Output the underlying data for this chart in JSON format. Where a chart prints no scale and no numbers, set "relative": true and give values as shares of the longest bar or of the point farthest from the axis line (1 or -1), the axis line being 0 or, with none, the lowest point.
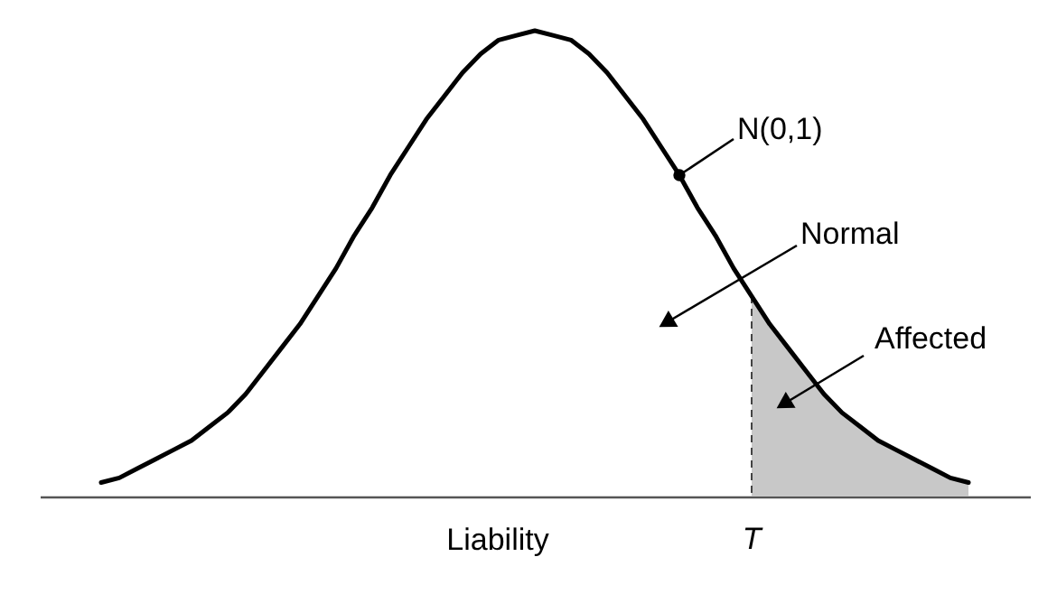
{
  "chart_data": {
    "type": "line",
    "relative": true,
    "xlabel": "Liability",
    "categories": [
      null,
      null,
      null,
      null,
      null,
      null,
      null,
      null,
      null,
      null,
      null,
      null,
      null,
      null,
      null,
      null,
      null,
      null,
      null,
      null,
      null,
      null,
      null,
      null,
      null,
      null,
      null,
      null,
      null,
      null,
      null,
      null,
      null,
      null,
      null,
      null,
      null,
      null,
      null,
      null,
      null,
      null,
      null,
      null,
      null,
      null,
      null,
      null,
      null
    ],
    "series": [
      {
        "color": "#000000",
        "values": [
          0.03,
          0.04,
          0.06,
          0.08,
          0.1,
          0.12,
          0.15,
          0.18,
          0.22,
          0.27,
          0.32,
          0.37,
          0.43,
          0.49,
          0.56,
          0.62,
          0.69,
          0.75,
          0.81,
          0.86,
          0.91,
          0.95,
          0.98,
          0.99,
          1,
          0.99,
          0.98,
          0.95,
          0.91,
          0.86,
          0.81,
          0.75,
          0.69,
          0.62,
          0.56,
          0.49,
          0.43,
          0.37,
          0.32,
          0.27,
          0.22,
          0.18,
          0.15,
          0.12,
          0.1,
          0.08,
          0.06,
          0.04,
          0.03
        ],
        "lower": [
          null,
          null,
          null,
          null,
          null,
          null,
          null,
          null,
          null,
          null,
          null,
          null,
          null,
          null,
          null,
          null,
          null,
          null,
          null,
          null,
          null,
          null,
          null,
          null,
          null,
          null,
          null,
          null,
          null,
          null,
          null,
          null,
          null,
          null,
          null,
          null,
          0,
          0,
          0,
          0,
          0,
          0,
          0,
          0,
          0,
          0,
          0,
          0,
          0
        ],
        "upper": [
          null,
          null,
          null,
          null,
          null,
          null,
          null,
          null,
          null,
          null,
          null,
          null,
          null,
          null,
          null,
          null,
          null,
          null,
          null,
          null,
          null,
          null,
          null,
          null,
          null,
          null,
          null,
          null,
          null,
          null,
          null,
          null,
          null,
          null,
          null,
          null,
          0.43,
          0.37,
          0.32,
          0.27,
          0.22,
          0.18,
          0.15,
          0.12,
          0.1,
          0.08,
          0.06,
          0.04,
          0.03
        ]
      }
    ],
    "annotations": [
      "N(0,1)",
      "Normal",
      "Affected",
      "T"
    ]
  }
}
